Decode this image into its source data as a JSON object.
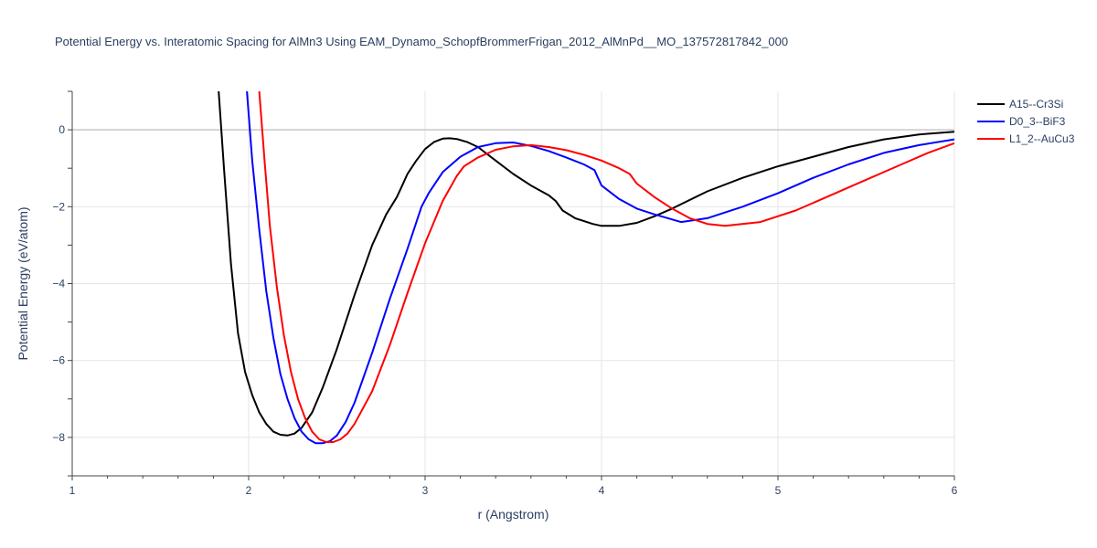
{
  "chart_data": {
    "type": "line",
    "title": "Potential Energy vs. Interatomic Spacing for AlMn3 Using EAM_Dynamo_SchopfBrommerFrigan_2012_AlMnPd__MO_137572817842_000",
    "xlabel": "r (Angstrom)",
    "ylabel": "Potential Energy (eV/atom)",
    "xlim": [
      1,
      6
    ],
    "ylim": [
      -9,
      1
    ],
    "xticks": [
      1,
      2,
      3,
      4,
      5,
      6
    ],
    "yticks": [
      -8,
      -6,
      -4,
      -2,
      0
    ],
    "grid": true,
    "legend_position": "top-right",
    "series": [
      {
        "name": "A15--Cr3Si",
        "color": "#000000",
        "x": [
          1.83,
          1.86,
          1.9,
          1.94,
          1.98,
          2.02,
          2.06,
          2.1,
          2.14,
          2.18,
          2.22,
          2.26,
          2.3,
          2.36,
          2.42,
          2.5,
          2.6,
          2.7,
          2.78,
          2.84,
          2.86,
          2.9,
          2.95,
          3.0,
          3.05,
          3.1,
          3.14,
          3.18,
          3.24,
          3.3,
          3.4,
          3.5,
          3.6,
          3.7,
          3.74,
          3.78,
          3.85,
          3.95,
          4.0,
          4.1,
          4.2,
          4.3,
          4.4,
          4.6,
          4.8,
          5.0,
          5.2,
          5.4,
          5.6,
          5.8,
          6.0
        ],
        "y": [
          1.0,
          -1.0,
          -3.5,
          -5.3,
          -6.3,
          -6.9,
          -7.35,
          -7.65,
          -7.85,
          -7.93,
          -7.95,
          -7.9,
          -7.75,
          -7.35,
          -6.7,
          -5.7,
          -4.3,
          -3.0,
          -2.2,
          -1.75,
          -1.55,
          -1.15,
          -0.8,
          -0.5,
          -0.32,
          -0.23,
          -0.22,
          -0.24,
          -0.32,
          -0.45,
          -0.8,
          -1.15,
          -1.45,
          -1.7,
          -1.85,
          -2.1,
          -2.3,
          -2.45,
          -2.5,
          -2.5,
          -2.42,
          -2.25,
          -2.05,
          -1.6,
          -1.25,
          -0.95,
          -0.7,
          -0.45,
          -0.25,
          -0.12,
          -0.05
        ]
      },
      {
        "name": "D0_3--BiF3",
        "color": "#0000ff",
        "x": [
          1.99,
          2.02,
          2.06,
          2.1,
          2.14,
          2.18,
          2.22,
          2.26,
          2.3,
          2.34,
          2.38,
          2.42,
          2.46,
          2.5,
          2.55,
          2.6,
          2.7,
          2.8,
          2.9,
          2.98,
          3.02,
          3.1,
          3.2,
          3.3,
          3.4,
          3.5,
          3.6,
          3.7,
          3.8,
          3.9,
          3.96,
          4.0,
          4.1,
          4.2,
          4.3,
          4.45,
          4.6,
          4.8,
          5.0,
          5.2,
          5.4,
          5.6,
          5.8,
          6.0
        ],
        "y": [
          1.0,
          -0.8,
          -2.6,
          -4.2,
          -5.4,
          -6.35,
          -7.0,
          -7.5,
          -7.85,
          -8.05,
          -8.15,
          -8.15,
          -8.1,
          -7.95,
          -7.6,
          -7.1,
          -5.8,
          -4.4,
          -3.1,
          -2.0,
          -1.65,
          -1.1,
          -0.7,
          -0.45,
          -0.35,
          -0.33,
          -0.42,
          -0.55,
          -0.72,
          -0.9,
          -1.05,
          -1.45,
          -1.8,
          -2.05,
          -2.2,
          -2.4,
          -2.3,
          -2.0,
          -1.65,
          -1.25,
          -0.9,
          -0.6,
          -0.4,
          -0.25
        ]
      },
      {
        "name": "L1_2--AuCu3",
        "color": "#ff0000",
        "x": [
          2.06,
          2.09,
          2.12,
          2.16,
          2.2,
          2.24,
          2.28,
          2.32,
          2.36,
          2.4,
          2.44,
          2.48,
          2.52,
          2.56,
          2.6,
          2.7,
          2.8,
          2.9,
          3.0,
          3.1,
          3.18,
          3.22,
          3.3,
          3.4,
          3.5,
          3.6,
          3.7,
          3.8,
          3.9,
          4.0,
          4.1,
          4.16,
          4.2,
          4.3,
          4.4,
          4.5,
          4.6,
          4.7,
          4.9,
          5.1,
          5.3,
          5.5,
          5.7,
          5.85,
          6.0
        ],
        "y": [
          1.0,
          -0.8,
          -2.5,
          -4.1,
          -5.35,
          -6.3,
          -7.0,
          -7.5,
          -7.85,
          -8.05,
          -8.12,
          -8.12,
          -8.05,
          -7.9,
          -7.65,
          -6.8,
          -5.6,
          -4.25,
          -2.95,
          -1.85,
          -1.2,
          -0.95,
          -0.72,
          -0.52,
          -0.43,
          -0.4,
          -0.45,
          -0.53,
          -0.65,
          -0.8,
          -1.0,
          -1.15,
          -1.4,
          -1.75,
          -2.05,
          -2.3,
          -2.45,
          -2.5,
          -2.4,
          -2.1,
          -1.7,
          -1.3,
          -0.9,
          -0.6,
          -0.35
        ]
      }
    ]
  }
}
